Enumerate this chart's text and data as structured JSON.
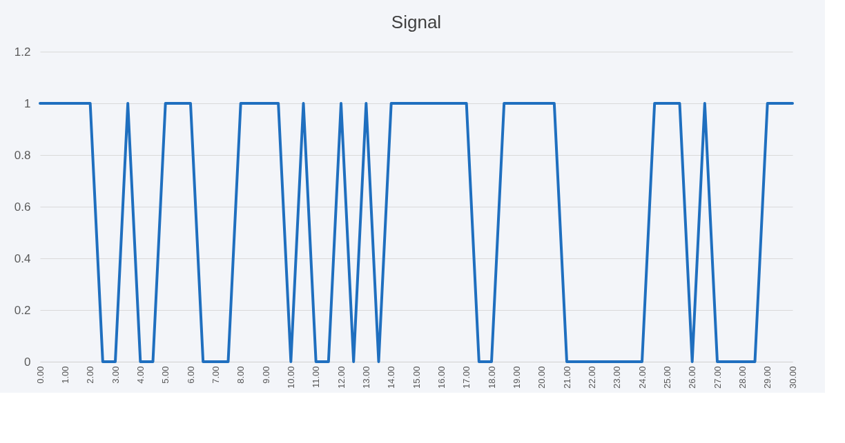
{
  "chart_data": {
    "type": "line",
    "title": "Signal",
    "x": [
      0,
      0.5,
      1,
      1.5,
      2,
      2.5,
      3,
      3.5,
      4,
      4.5,
      5,
      5.5,
      6,
      6.5,
      7,
      7.5,
      8,
      8.5,
      9,
      9.5,
      10,
      10.5,
      11,
      11.5,
      12,
      12.5,
      13,
      13.5,
      14,
      14.5,
      15,
      15.5,
      16,
      16.5,
      17,
      17.5,
      18,
      18.5,
      19,
      19.5,
      20,
      20.5,
      21,
      21.5,
      22,
      22.5,
      23,
      23.5,
      24,
      24.5,
      25,
      25.5,
      26,
      26.5,
      27,
      27.5,
      28,
      28.5,
      29,
      29.5,
      30
    ],
    "series": [
      {
        "color": "#1f6fbf",
        "values": [
          1,
          1,
          1,
          1,
          1,
          0,
          0,
          1,
          0,
          0,
          1,
          1,
          1,
          0,
          0,
          0,
          1,
          1,
          1,
          1,
          0,
          1,
          0,
          0,
          1,
          0,
          1,
          0,
          1,
          1,
          1,
          1,
          1,
          1,
          1,
          0,
          0,
          1,
          1,
          1,
          1,
          1,
          0,
          0,
          0,
          0,
          0,
          0,
          0,
          1,
          1,
          1,
          0,
          1,
          0,
          0,
          0,
          0,
          1,
          1,
          1
        ]
      }
    ],
    "xlim": [
      0,
      30
    ],
    "xticks": [
      {
        "value": 0,
        "label": "0.00"
      },
      {
        "value": 1,
        "label": "1.00"
      },
      {
        "value": 2,
        "label": "2.00"
      },
      {
        "value": 3,
        "label": "3.00"
      },
      {
        "value": 4,
        "label": "4.00"
      },
      {
        "value": 5,
        "label": "5.00"
      },
      {
        "value": 6,
        "label": "6.00"
      },
      {
        "value": 7,
        "label": "7.00"
      },
      {
        "value": 8,
        "label": "8.00"
      },
      {
        "value": 9,
        "label": "9.00"
      },
      {
        "value": 10,
        "label": "10.00"
      },
      {
        "value": 11,
        "label": "11.00"
      },
      {
        "value": 12,
        "label": "12.00"
      },
      {
        "value": 13,
        "label": "13.00"
      },
      {
        "value": 14,
        "label": "14.00"
      },
      {
        "value": 15,
        "label": "15.00"
      },
      {
        "value": 16,
        "label": "16.00"
      },
      {
        "value": 17,
        "label": "17.00"
      },
      {
        "value": 18,
        "label": "18.00"
      },
      {
        "value": 19,
        "label": "19.00"
      },
      {
        "value": 20,
        "label": "20.00"
      },
      {
        "value": 21,
        "label": "21.00"
      },
      {
        "value": 22,
        "label": "22.00"
      },
      {
        "value": 23,
        "label": "23.00"
      },
      {
        "value": 24,
        "label": "24.00"
      },
      {
        "value": 25,
        "label": "25.00"
      },
      {
        "value": 26,
        "label": "26.00"
      },
      {
        "value": 27,
        "label": "27.00"
      },
      {
        "value": 28,
        "label": "28.00"
      },
      {
        "value": 29,
        "label": "29.00"
      },
      {
        "value": 30,
        "label": "30.00"
      }
    ],
    "ylim": [
      0,
      1.2
    ],
    "yticks": [
      0,
      0.2,
      0.4,
      0.6,
      0.8,
      1,
      1.2
    ],
    "grid": "y",
    "marker": "none",
    "line_style": "solid"
  }
}
